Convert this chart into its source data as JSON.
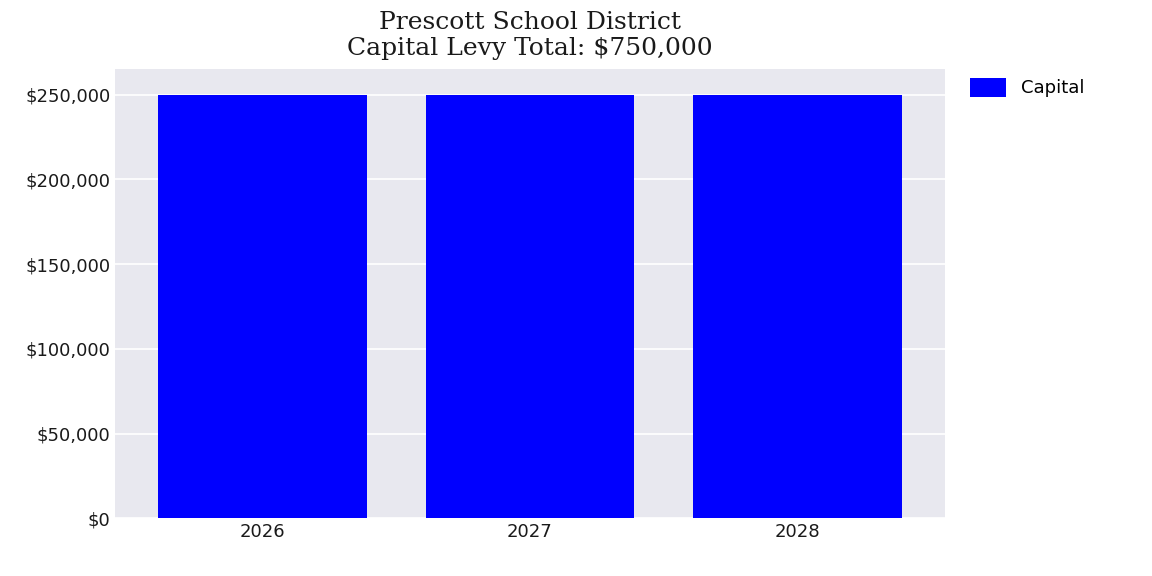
{
  "title_line1": "Prescott School District",
  "title_line2": "Capital Levy Total: $750,000",
  "categories": [
    2026,
    2027,
    2028
  ],
  "values": [
    250000,
    250000,
    250000
  ],
  "bar_color": "#0000FF",
  "legend_label": "Capital",
  "ylim": [
    0,
    265000
  ],
  "yticks": [
    0,
    50000,
    100000,
    150000,
    200000,
    250000
  ],
  "ytick_labels": [
    "$0",
    "$50,000",
    "$100,000",
    "$150,000",
    "$200,000",
    "$250,000"
  ],
  "plot_bg_color": "#E8E8EF",
  "fig_bg_color": "#FFFFFF",
  "title_fontsize": 18,
  "tick_fontsize": 13,
  "legend_fontsize": 13,
  "bar_width": 0.78
}
